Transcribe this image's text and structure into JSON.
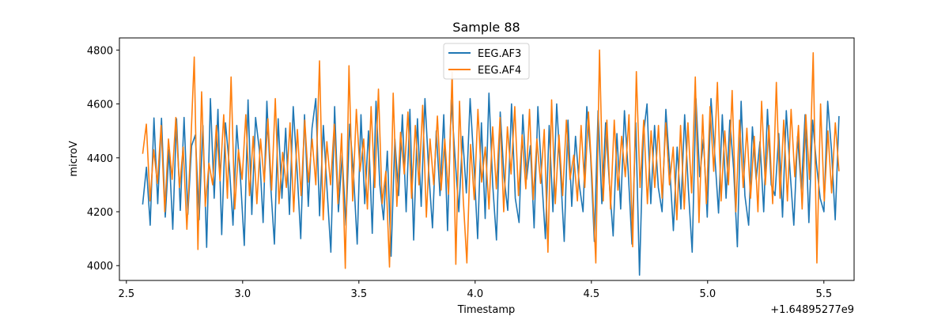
{
  "chart_data": {
    "type": "line",
    "title": "Sample 88",
    "xlabel": "Timestamp",
    "ylabel": "microV",
    "x_offset_label": "+1.64895277e9",
    "xlim": [
      2.47,
      5.63
    ],
    "ylim": [
      3945,
      4845
    ],
    "x_ticks": [
      2.5,
      3.0,
      3.5,
      4.0,
      4.5,
      5.0,
      5.5
    ],
    "x_tick_labels": [
      "2.5",
      "3.0",
      "3.5",
      "4.0",
      "4.5",
      "5.0",
      "5.5"
    ],
    "y_ticks": [
      4000,
      4200,
      4400,
      4600,
      4800
    ],
    "y_tick_labels": [
      "4000",
      "4200",
      "4400",
      "4600",
      "4800"
    ],
    "grid": false,
    "legend_position": "top-center",
    "x_start": 2.57,
    "x_end": 5.565,
    "series": [
      {
        "name": "EEG.AF3",
        "color": "#1f77b4",
        "values": [
          4227,
          4365,
          4150,
          4548,
          4230,
          4547,
          4180,
          4430,
          4135,
          4545,
          4205,
          4550,
          4190,
          4445,
          4485,
          4170,
          4520,
          4068,
          4620,
          4250,
          4580,
          4115,
          4530,
          4375,
          4150,
          4520,
          4320,
          4075,
          4615,
          4190,
          4550,
          4430,
          4160,
          4610,
          4300,
          4080,
          4545,
          4250,
          4510,
          4190,
          4590,
          4360,
          4100,
          4560,
          4220,
          4510,
          4620,
          4185,
          4520,
          4280,
          4050,
          4590,
          4200,
          4410,
          4150,
          4525,
          4345,
          4080,
          4560,
          4230,
          4500,
          4120,
          4610,
          4300,
          4170,
          4425,
          4035,
          4470,
          4260,
          4560,
          4200,
          4580,
          4095,
          4545,
          4220,
          4620,
          4350,
          4140,
          4500,
          4260,
          4560,
          4130,
          4615,
          4400,
          4200,
          4480,
          4270,
          4620,
          4380,
          4100,
          4530,
          4175,
          4640,
          4300,
          4095,
          4570,
          4330,
          4205,
          4600,
          4250,
          4160,
          4560,
          4320,
          4445,
          4140,
          4590,
          4330,
          4100,
          4520,
          4200,
          4600,
          4350,
          4090,
          4540,
          4220,
          4480,
          4300,
          4200,
          4590,
          4410,
          4090,
          4575,
          4230,
          4530,
          4305,
          4110,
          4490,
          4210,
          4575,
          4350,
          4080,
          4530,
          3965,
          4480,
          4600,
          4230,
          4520,
          4290,
          4200,
          4580,
          4370,
          4130,
          4440,
          4210,
          4560,
          4280,
          4050,
          4620,
          4330,
          4470,
          4180,
          4620,
          4410,
          4195,
          4560,
          4250,
          4540,
          4360,
          4070,
          4610,
          4260,
          4150,
          4515,
          4320,
          4460,
          4200,
          4580,
          4300,
          4260,
          4490,
          4180,
          4575,
          4350,
          4150,
          4480,
          4280,
          4560,
          4160,
          4540,
          4380,
          4250,
          4200,
          4610,
          4430,
          4170,
          4555
        ],
        "values_note": "",
        "label": "EEG.AF3"
      },
      {
        "name": "EEG.AF4",
        "color": "#ff7f0e",
        "values": [
          4415,
          4525,
          4240,
          4430,
          4305,
          4520,
          4200,
          4470,
          4320,
          4550,
          4290,
          4440,
          4135,
          4430,
          4774,
          4060,
          4645,
          4220,
          4380,
          4300,
          4520,
          4315,
          4560,
          4250,
          4700,
          4210,
          4430,
          4320,
          4560,
          4260,
          4480,
          4230,
          4470,
          4310,
          4545,
          4280,
          4620,
          4230,
          4420,
          4290,
          4530,
          4200,
          4505,
          4260,
          4540,
          4310,
          4470,
          4300,
          4760,
          4170,
          4460,
          4300,
          4525,
          4230,
          4490,
          3990,
          4742,
          4240,
          4580,
          4350,
          4470,
          4210,
          4590,
          4290,
          4655,
          4230,
          4350,
          3995,
          4640,
          4220,
          4495,
          4340,
          4570,
          4250,
          4520,
          4300,
          4595,
          4180,
          4470,
          4300,
          4555,
          4280,
          4470,
          4265,
          4720,
          4005,
          4610,
          4250,
          4010,
          4450,
          4245,
          4580,
          4310,
          4440,
          4210,
          4515,
          4285,
          4550,
          4200,
          4515,
          4340,
          4590,
          4260,
          4485,
          4285,
          4580,
          4245,
          4470,
          4305,
          4505,
          4050,
          4615,
          4230,
          4485,
          4260,
          4540,
          4320,
          4410,
          4240,
          4520,
          4290,
          4570,
          4320,
          4010,
          4800,
          4240,
          4540,
          4210,
          4540,
          4280,
          4480,
          4330,
          4560,
          4070,
          4720,
          4290,
          4540,
          4230,
          4500,
          4290,
          4520,
          4250,
          4530,
          4300,
          4440,
          4170,
          4520,
          4210,
          4530,
          4270,
          4700,
          4160,
          4560,
          4230,
          4590,
          4350,
          4680,
          4240,
          4500,
          4300,
          4650,
          4200,
          4540,
          4290,
          4510,
          4250,
          4480,
          4200,
          4610,
          4300,
          4520,
          4230,
          4680,
          4250,
          4540,
          4240,
          4580,
          4330,
          4520,
          4210,
          4560,
          4320,
          4790,
          4010,
          4600,
          4240,
          4500,
          4270,
          4530,
          4350
        ]
      }
    ]
  }
}
